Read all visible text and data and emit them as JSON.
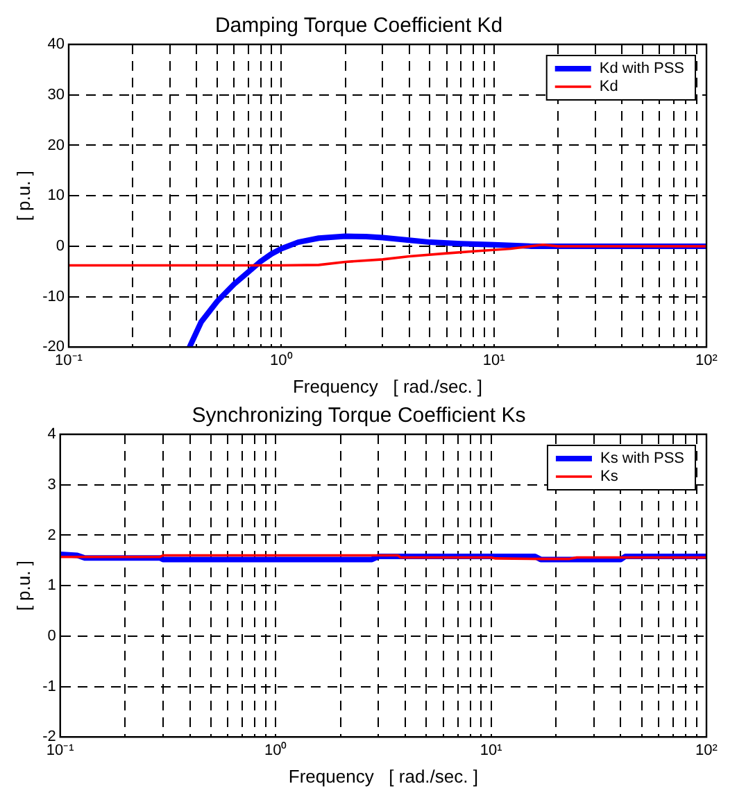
{
  "chart_data": [
    {
      "type": "line",
      "title": "Damping Torque Coefficient Kd",
      "xlabel": "Frequency   [ rad./sec. ]",
      "ylabel": "[ p.u. ]",
      "log": "x",
      "grid": true,
      "legend": "top right",
      "marker": "none",
      "line_style": "solid",
      "xlim": [
        0.1,
        100
      ],
      "ylim": [
        -20,
        40
      ],
      "xticks": [
        {
          "value": 0.1,
          "label": "10⁻¹"
        },
        {
          "value": 0.2,
          "label": null
        },
        {
          "value": 0.3,
          "label": null
        },
        {
          "value": 0.4,
          "label": null
        },
        {
          "value": 0.5,
          "label": null
        },
        {
          "value": 0.6,
          "label": null
        },
        {
          "value": 0.7,
          "label": null
        },
        {
          "value": 0.8,
          "label": null
        },
        {
          "value": 0.9,
          "label": null
        },
        {
          "value": 1,
          "label": "10⁰"
        },
        {
          "value": 2,
          "label": null
        },
        {
          "value": 3,
          "label": null
        },
        {
          "value": 4,
          "label": null
        },
        {
          "value": 5,
          "label": null
        },
        {
          "value": 6,
          "label": null
        },
        {
          "value": 7,
          "label": null
        },
        {
          "value": 8,
          "label": null
        },
        {
          "value": 9,
          "label": null
        },
        {
          "value": 10,
          "label": "10¹"
        },
        {
          "value": 20,
          "label": null
        },
        {
          "value": 30,
          "label": null
        },
        {
          "value": 40,
          "label": null
        },
        {
          "value": 50,
          "label": null
        },
        {
          "value": 60,
          "label": null
        },
        {
          "value": 70,
          "label": null
        },
        {
          "value": 80,
          "label": null
        },
        {
          "value": 90,
          "label": null
        },
        {
          "value": 100,
          "label": "10²"
        }
      ],
      "yticks": [
        -20,
        -10,
        0,
        10,
        20,
        30,
        40
      ],
      "series": [
        {
          "name": "Kd with PSS",
          "color": "#0000ff",
          "x": [
            0.37,
            0.42,
            0.5,
            0.6,
            0.7,
            0.8,
            0.9,
            1,
            1.2,
            1.5,
            2,
            2.5,
            3,
            4,
            5,
            7,
            10,
            15,
            20,
            50,
            100
          ],
          "values": [
            -20,
            -15,
            -10.9,
            -7.5,
            -5.1,
            -3,
            -1.5,
            -0.5,
            0.8,
            1.6,
            2,
            1.9,
            1.7,
            1.2,
            0.8,
            0.5,
            0.3,
            0,
            0,
            0,
            0
          ]
        },
        {
          "name": "Kd",
          "color": "#ff0000",
          "x": [
            0.1,
            0.5,
            1,
            1.5,
            2,
            3,
            4,
            6,
            8,
            12,
            17,
            20,
            50,
            100
          ],
          "values": [
            -3.8,
            -3.8,
            -3.8,
            -3.7,
            -3.1,
            -2.6,
            -2,
            -1.4,
            -1,
            -0.5,
            0.3,
            0,
            0,
            0
          ]
        }
      ]
    },
    {
      "type": "line",
      "title": "Synchronizing Torque Coefficient Ks",
      "xlabel": "Frequency   [ rad./sec. ]",
      "ylabel": "[ p.u. ]",
      "log": "x",
      "grid": true,
      "legend": "top right",
      "marker": "none",
      "line_style": "solid",
      "xlim": [
        0.1,
        100
      ],
      "ylim": [
        -2,
        4
      ],
      "xticks": [
        {
          "value": 0.1,
          "label": "10⁻¹"
        },
        {
          "value": 0.2,
          "label": null
        },
        {
          "value": 0.3,
          "label": null
        },
        {
          "value": 0.4,
          "label": null
        },
        {
          "value": 0.5,
          "label": null
        },
        {
          "value": 0.6,
          "label": null
        },
        {
          "value": 0.7,
          "label": null
        },
        {
          "value": 0.8,
          "label": null
        },
        {
          "value": 0.9,
          "label": null
        },
        {
          "value": 1,
          "label": "10⁰"
        },
        {
          "value": 2,
          "label": null
        },
        {
          "value": 3,
          "label": null
        },
        {
          "value": 4,
          "label": null
        },
        {
          "value": 5,
          "label": null
        },
        {
          "value": 6,
          "label": null
        },
        {
          "value": 7,
          "label": null
        },
        {
          "value": 8,
          "label": null
        },
        {
          "value": 9,
          "label": null
        },
        {
          "value": 10,
          "label": "10¹"
        },
        {
          "value": 20,
          "label": null
        },
        {
          "value": 30,
          "label": null
        },
        {
          "value": 40,
          "label": null
        },
        {
          "value": 50,
          "label": null
        },
        {
          "value": 60,
          "label": null
        },
        {
          "value": 70,
          "label": null
        },
        {
          "value": 80,
          "label": null
        },
        {
          "value": 90,
          "label": null
        },
        {
          "value": 100,
          "label": "10²"
        }
      ],
      "yticks": [
        -2,
        -1,
        0,
        1,
        2,
        3,
        4
      ],
      "series": [
        {
          "name": "Ks with PSS",
          "color": "#0000ff",
          "x": [
            0.1,
            0.12,
            0.13,
            0.29,
            0.3,
            2.8,
            3,
            16,
            17,
            40,
            42,
            100
          ],
          "values": [
            1.62,
            1.6,
            1.55,
            1.55,
            1.52,
            1.52,
            1.58,
            1.58,
            1.52,
            1.52,
            1.58,
            1.58
          ]
        },
        {
          "name": "Ks",
          "color": "#ff0000",
          "x": [
            0.1,
            0.29,
            0.3,
            3.7,
            3.8,
            10,
            10.5,
            17,
            23,
            25,
            100
          ],
          "values": [
            1.57,
            1.57,
            1.6,
            1.6,
            1.56,
            1.56,
            1.54,
            1.53,
            1.53,
            1.56,
            1.56
          ]
        }
      ]
    }
  ]
}
